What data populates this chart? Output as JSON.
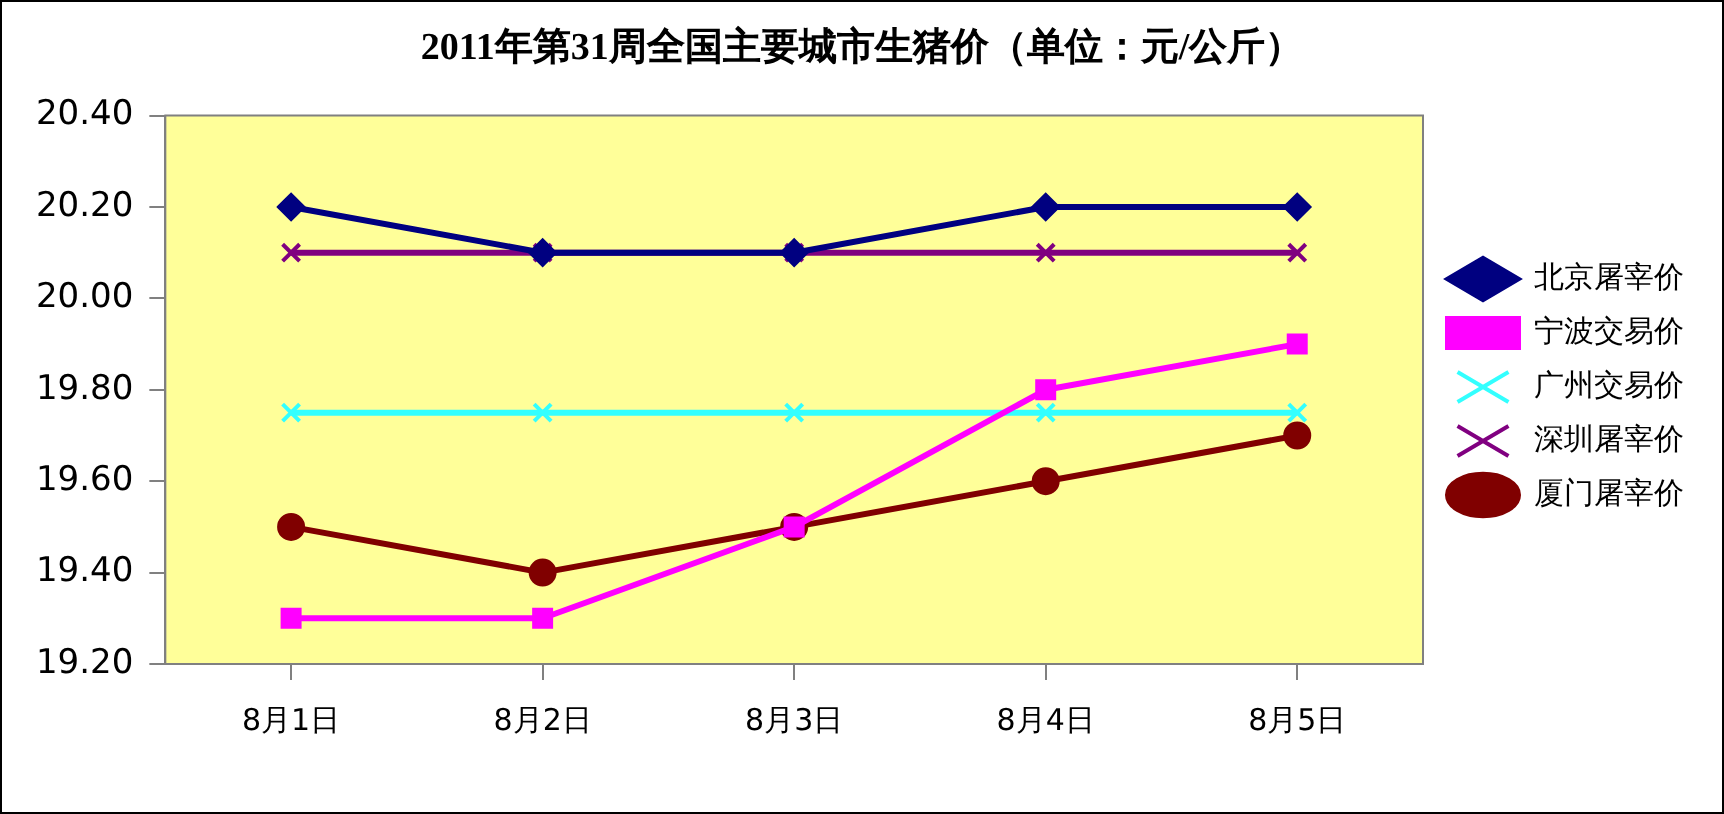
{
  "chart_data": {
    "type": "line",
    "title": "2011年第31周全国主要城市生猪价（单位：元/公斤）",
    "categories": [
      "8月1日",
      "8月2日",
      "8月3日",
      "8月4日",
      "8月5日"
    ],
    "series": [
      {
        "name": "北京屠宰价",
        "color": "#000080",
        "marker": "diamond",
        "values": [
          20.2,
          20.1,
          20.1,
          20.2,
          20.2
        ]
      },
      {
        "name": "宁波交易价",
        "color": "#ff00ff",
        "marker": "square",
        "values": [
          19.3,
          19.3,
          19.5,
          19.8,
          19.9
        ]
      },
      {
        "name": "广州交易价",
        "color": "#33ffff",
        "marker": "cross",
        "values": [
          19.75,
          19.75,
          19.75,
          19.75,
          19.75
        ]
      },
      {
        "name": "深圳屠宰价",
        "color": "#800080",
        "marker": "cross",
        "values": [
          20.1,
          20.1,
          20.1,
          20.1,
          20.1
        ]
      },
      {
        "name": "厦门屠宰价",
        "color": "#800000",
        "marker": "circle",
        "values": [
          19.5,
          19.4,
          19.5,
          19.6,
          19.7
        ]
      }
    ],
    "ylim": [
      19.2,
      20.4
    ],
    "yticks": [
      {
        "value": 19.2,
        "label": "19.20"
      },
      {
        "value": 19.4,
        "label": "19.40"
      },
      {
        "value": 19.6,
        "label": "19.60"
      },
      {
        "value": 19.8,
        "label": "19.80"
      },
      {
        "value": 20.0,
        "label": "20.00"
      },
      {
        "value": 20.2,
        "label": "20.20"
      },
      {
        "value": 20.4,
        "label": "20.40"
      }
    ],
    "grid": false,
    "legend": "right",
    "line_style": "solid"
  }
}
